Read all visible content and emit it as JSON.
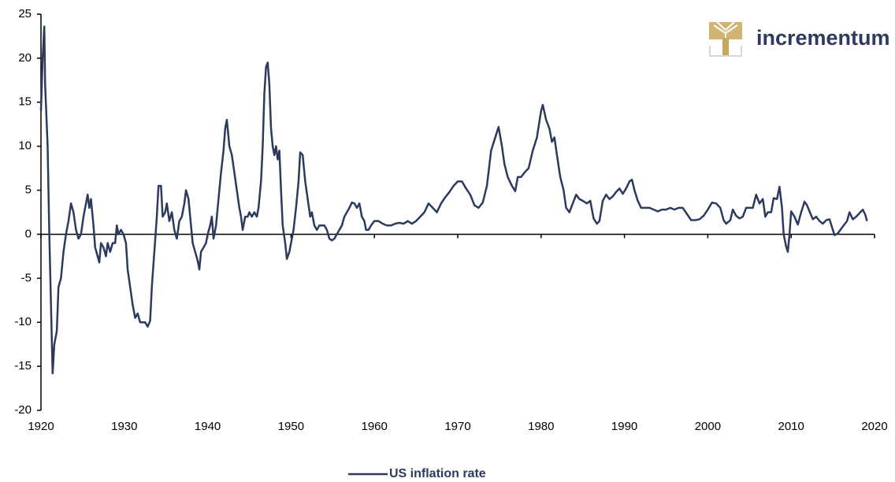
{
  "chart_data": {
    "type": "line",
    "logo": "incrementum",
    "xlim": [
      1920,
      2020
    ],
    "xticks": [
      1920,
      1930,
      1940,
      1950,
      1960,
      1970,
      1980,
      1990,
      2000,
      2010,
      2020
    ],
    "ylim": [
      -20,
      25
    ],
    "yticks": [
      -20,
      -15,
      -10,
      -5,
      0,
      5,
      10,
      15,
      20,
      25
    ],
    "legend": "bottom",
    "series": [
      {
        "name": "US inflation rate",
        "color": "#2b3a5e",
        "x": [
          1920.0,
          1920.2,
          1920.4,
          1920.5,
          1920.8,
          1921.0,
          1921.2,
          1921.4,
          1921.6,
          1921.9,
          1922.1,
          1922.4,
          1922.7,
          1923.0,
          1923.3,
          1923.6,
          1923.9,
          1924.2,
          1924.5,
          1924.8,
          1925.1,
          1925.4,
          1925.6,
          1925.8,
          1926.0,
          1926.3,
          1926.5,
          1926.8,
          1927.0,
          1927.2,
          1927.5,
          1927.8,
          1928.0,
          1928.3,
          1928.6,
          1928.9,
          1929.1,
          1929.3,
          1929.6,
          1929.9,
          1930.2,
          1930.4,
          1930.7,
          1931.0,
          1931.3,
          1931.6,
          1931.9,
          1932.2,
          1932.5,
          1932.8,
          1933.1,
          1933.3,
          1933.6,
          1933.9,
          1934.1,
          1934.4,
          1934.6,
          1934.9,
          1935.1,
          1935.4,
          1935.7,
          1936.0,
          1936.3,
          1936.6,
          1936.9,
          1937.2,
          1937.4,
          1937.7,
          1937.9,
          1938.2,
          1938.5,
          1938.8,
          1939.0,
          1939.2,
          1939.5,
          1939.8,
          1940.0,
          1940.3,
          1940.5,
          1940.7,
          1941.0,
          1941.3,
          1941.6,
          1941.9,
          1942.1,
          1942.3,
          1942.6,
          1942.9,
          1943.2,
          1943.5,
          1943.8,
          1944.0,
          1944.2,
          1944.5,
          1944.8,
          1945.0,
          1945.3,
          1945.6,
          1945.9,
          1946.1,
          1946.4,
          1946.6,
          1946.8,
          1947.0,
          1947.2,
          1947.4,
          1947.6,
          1947.8,
          1948.0,
          1948.2,
          1948.4,
          1948.6,
          1948.8,
          1949.0,
          1949.3,
          1949.5,
          1949.8,
          1950.0,
          1950.3,
          1950.6,
          1950.9,
          1951.1,
          1951.4,
          1951.7,
          1952.0,
          1952.3,
          1952.5,
          1952.8,
          1953.1,
          1953.4,
          1953.7,
          1954.0,
          1954.3,
          1954.6,
          1954.9,
          1955.2,
          1955.5,
          1955.8,
          1956.1,
          1956.4,
          1956.7,
          1957.0,
          1957.3,
          1957.6,
          1957.9,
          1958.2,
          1958.5,
          1958.8,
          1959.0,
          1959.3,
          1959.6,
          1960.0,
          1960.5,
          1961.0,
          1961.5,
          1962.0,
          1962.5,
          1963.0,
          1963.5,
          1964.0,
          1964.5,
          1965.0,
          1965.5,
          1966.0,
          1966.5,
          1967.0,
          1967.5,
          1968.0,
          1968.5,
          1969.0,
          1969.5,
          1970.0,
          1970.5,
          1971.0,
          1971.5,
          1972.0,
          1972.5,
          1973.0,
          1973.5,
          1974.0,
          1974.5,
          1974.9,
          1975.3,
          1975.6,
          1976.0,
          1976.5,
          1976.9,
          1977.2,
          1977.6,
          1978.0,
          1978.5,
          1979.0,
          1979.5,
          1980.0,
          1980.2,
          1980.6,
          1981.0,
          1981.3,
          1981.6,
          1981.9,
          1982.3,
          1982.7,
          1983.0,
          1983.4,
          1983.8,
          1984.2,
          1984.6,
          1985.0,
          1985.5,
          1985.9,
          1986.3,
          1986.7,
          1987.0,
          1987.4,
          1987.8,
          1988.2,
          1988.6,
          1989.0,
          1989.4,
          1989.8,
          1990.2,
          1990.6,
          1990.9,
          1991.2,
          1991.6,
          1992.0,
          1992.5,
          1993.0,
          1993.5,
          1994.0,
          1994.5,
          1995.0,
          1995.5,
          1996.0,
          1996.5,
          1997.0,
          1997.5,
          1998.0,
          1998.5,
          1999.0,
          1999.5,
          2000.0,
          2000.5,
          2001.0,
          2001.5,
          2001.9,
          2002.2,
          2002.7,
          2003.0,
          2003.4,
          2003.8,
          2004.2,
          2004.6,
          2005.0,
          2005.4,
          2005.8,
          2006.2,
          2006.6,
          2006.9,
          2007.2,
          2007.6,
          2007.9,
          2008.3,
          2008.6,
          2008.9,
          2009.1,
          2009.4,
          2009.6,
          2009.8,
          2010.0,
          2010.4,
          2010.8,
          2011.2,
          2011.6,
          2011.9,
          2012.2,
          2012.6,
          2013.0,
          2013.4,
          2013.8,
          2014.2,
          2014.6,
          2014.9,
          2015.2,
          2015.6,
          2015.9,
          2016.3,
          2016.7,
          2017.0,
          2017.4,
          2017.8,
          2018.2,
          2018.6,
          2018.9,
          2019.1
        ],
        "values": [
          14,
          20,
          23.6,
          17,
          10,
          0,
          -8,
          -15.8,
          -12.5,
          -11,
          -6,
          -5,
          -2,
          0,
          1.5,
          3.5,
          2.5,
          0.5,
          -0.5,
          0,
          2,
          3.5,
          4.5,
          3,
          4,
          1,
          -1.5,
          -2.5,
          -3.2,
          -1,
          -1.5,
          -2.5,
          -1,
          -2,
          -1,
          -1,
          1,
          0,
          0.5,
          0,
          -1,
          -4,
          -6,
          -8,
          -9.5,
          -9,
          -10,
          -10,
          -10,
          -10.5,
          -9.8,
          -6,
          -2,
          2,
          5.5,
          5.5,
          2,
          2.5,
          3.5,
          1.5,
          2.5,
          0.5,
          -0.5,
          1.5,
          2,
          3.5,
          5,
          4,
          2,
          -1,
          -2,
          -3,
          -4,
          -2,
          -1.5,
          -1,
          0,
          1,
          2,
          -0.5,
          1,
          4,
          7,
          9.5,
          12,
          13,
          10,
          9,
          7,
          5,
          3,
          2,
          0.5,
          2,
          2,
          2.5,
          2,
          2.5,
          2,
          3,
          6,
          10,
          16,
          19,
          19.5,
          17,
          12,
          10,
          9,
          10,
          8.5,
          9.5,
          5,
          1,
          -1,
          -2.8,
          -2,
          -1,
          0.5,
          3,
          6,
          9.3,
          9,
          6,
          4,
          2,
          2.5,
          1,
          0.5,
          1,
          1,
          1,
          0.5,
          -0.5,
          -0.7,
          -0.5,
          0,
          0.5,
          1,
          2,
          2.5,
          3,
          3.6,
          3.5,
          3,
          3.5,
          2,
          1.5,
          0.5,
          0.5,
          1,
          1.5,
          1.5,
          1.2,
          1,
          1,
          1.2,
          1.3,
          1.2,
          1.5,
          1.2,
          1.5,
          2,
          2.5,
          3.5,
          3,
          2.5,
          3.5,
          4.2,
          4.8,
          5.5,
          6,
          6,
          5.2,
          4.5,
          3.3,
          3,
          3.6,
          5.5,
          9.5,
          11,
          12.2,
          10,
          8,
          6.5,
          5.5,
          4.9,
          6.5,
          6.5,
          7,
          7.5,
          9.5,
          11,
          14,
          14.7,
          13,
          12,
          10.5,
          11,
          9,
          6.5,
          5,
          3,
          2.5,
          3.5,
          4.5,
          4,
          3.8,
          3.5,
          3.8,
          1.8,
          1.2,
          1.5,
          3.8,
          4.5,
          4,
          4.3,
          4.8,
          5.2,
          4.6,
          5.2,
          6,
          6.2,
          5,
          3.8,
          3,
          3,
          3,
          2.8,
          2.6,
          2.8,
          2.8,
          3,
          2.8,
          3,
          3,
          2.3,
          1.6,
          1.6,
          1.7,
          2.1,
          2.8,
          3.6,
          3.5,
          3,
          1.6,
          1.2,
          1.6,
          2.8,
          2.1,
          1.8,
          2,
          3,
          3,
          3,
          4.5,
          3.5,
          4,
          2,
          2.5,
          2.5,
          4.1,
          4,
          5.4,
          3,
          0,
          -1.4,
          -2,
          0,
          2.6,
          2,
          1.1,
          2.5,
          3.7,
          3.3,
          2.6,
          1.7,
          2,
          1.5,
          1.2,
          1.6,
          1.7,
          0.8,
          -0.1,
          0.1,
          0.5,
          1,
          1.5,
          2.5,
          1.7,
          2,
          2.4,
          2.8,
          2.2,
          1.5
        ]
      }
    ]
  }
}
